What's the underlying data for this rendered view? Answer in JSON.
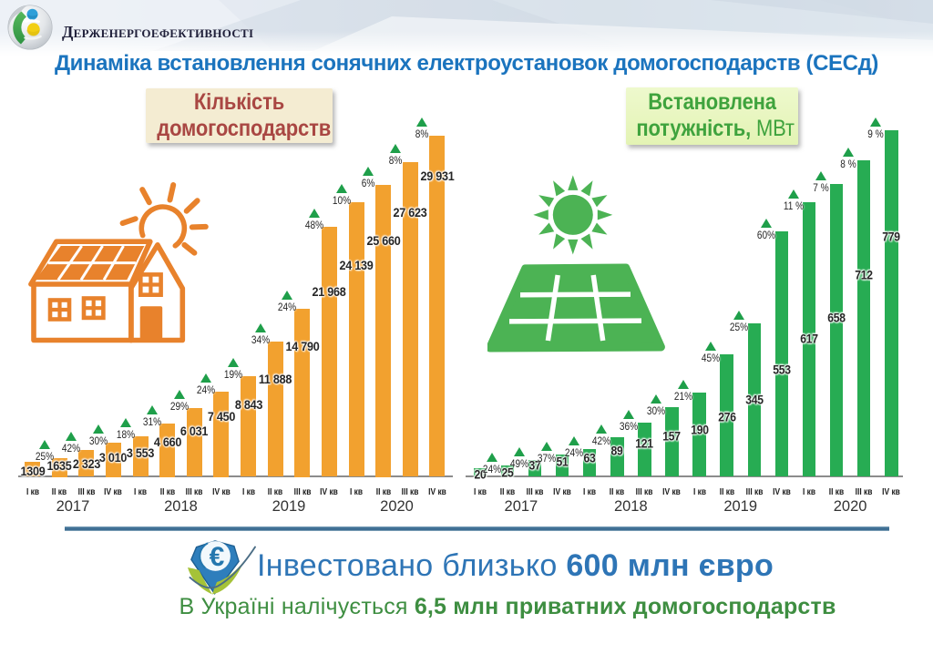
{
  "header": {
    "agency_name": "Держенергоефективності",
    "title": "Динаміка встановлення сонячних електроустановок домогосподарств (СЕСд)",
    "title_color": "#1b74be"
  },
  "chart_data": [
    {
      "type": "bar",
      "id": "households",
      "title": "Кількість домогосподарств",
      "label_line1": "Кількість",
      "label_line2": "домогосподарств",
      "bar_color": "#f2a12f",
      "triangle_color": "#1f9f4a",
      "categories": [
        "І кв",
        "ІІ кв",
        "ІІІ кв",
        "IV кв",
        "І кв",
        "ІІ кв",
        "ІІІ кв",
        "IV кв",
        "І кв",
        "ІІ кв",
        "ІІІ кв",
        "IV кв",
        "І кв",
        "ІІ кв",
        "ІІІ кв",
        "IV кв"
      ],
      "years": [
        "2017",
        "2018",
        "2019",
        "2020"
      ],
      "values": [
        1309,
        1635,
        2323,
        3010,
        3553,
        4660,
        6031,
        7450,
        8843,
        11888,
        14790,
        21968,
        24139,
        25660,
        27623,
        29931
      ],
      "value_labels": [
        "1309",
        "1635",
        "2 323",
        "3 010",
        "3 553",
        "4 660",
        "6 031",
        "7 450",
        "8 843",
        "11 888",
        "14 790",
        "21 968",
        "24 139",
        "25 660",
        "27 623",
        "29 931"
      ],
      "growth_labels": [
        "",
        "25%",
        "42%",
        "30%",
        "18%",
        "31%",
        "29%",
        "24%",
        "19%",
        "34%",
        "24%",
        "48%",
        "10%",
        "6%",
        "8%",
        "8%"
      ],
      "ylim": [
        0,
        30000
      ],
      "legend_position": "none",
      "grid": false
    },
    {
      "type": "bar",
      "id": "capacity",
      "title": "Встановлена потужність, МВт",
      "label_line1": "Встановлена",
      "label_line2_bold": "потужність,",
      "label_line2_unit": " МВт",
      "bar_color": "#27ac53",
      "triangle_color": "#1f9f4a",
      "categories": [
        "І кв",
        "ІІ кв",
        "ІІІ кв",
        "IV кв",
        "І кв",
        "ІІ кв",
        "ІІІ кв",
        "IV кв",
        "І кв",
        "ІІ кв",
        "ІІІ кв",
        "IV кв",
        "І кв",
        "ІІ кв",
        "ІІІ кв",
        "IV кв"
      ],
      "years": [
        "2017",
        "2018",
        "2019",
        "2020"
      ],
      "values": [
        20,
        25,
        37,
        51,
        63,
        89,
        121,
        157,
        190,
        276,
        345,
        553,
        617,
        658,
        712,
        779
      ],
      "value_labels": [
        "20",
        "25",
        "37",
        "51",
        "63",
        "89",
        "121",
        "157",
        "190",
        "276",
        "345",
        "553",
        "617",
        "658",
        "712",
        "779"
      ],
      "growth_labels": [
        "",
        "24%",
        "49%",
        "37%",
        "24%",
        "42%",
        "36%",
        "30%",
        "21%",
        "45%",
        "25%",
        "60%",
        "11 %",
        "7 %",
        "8 %",
        "9 %"
      ],
      "ylim": [
        0,
        800
      ],
      "legend_position": "none",
      "grid": false
    }
  ],
  "footer": {
    "investment_text_regular": "Інвестовано близько ",
    "investment_text_bold": "600 млн євро",
    "investment_color": "#2e75b6",
    "households_text_regular": "В Україні налічується ",
    "households_text_bold": "6,5 млн приватних домогосподарств",
    "households_color": "#3e8e41"
  }
}
